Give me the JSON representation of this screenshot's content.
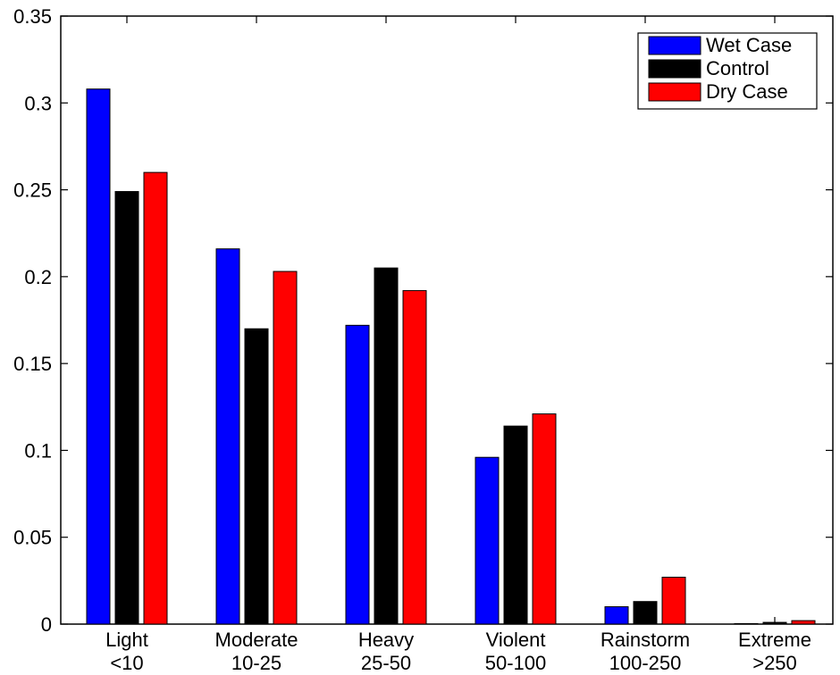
{
  "chart_data": {
    "type": "bar",
    "title": "",
    "xlabel": "",
    "ylabel": "",
    "ylim": [
      0,
      0.35
    ],
    "yticks": [
      0,
      0.05,
      0.1,
      0.15,
      0.2,
      0.25,
      0.3,
      0.35
    ],
    "ytick_labels": [
      "0",
      "0.05",
      "0.1",
      "0.15",
      "0.2",
      "0.25",
      "0.3",
      "0.35"
    ],
    "categories": [
      {
        "line1": "Light",
        "line2": "<10"
      },
      {
        "line1": "Moderate",
        "line2": "10-25"
      },
      {
        "line1": "Heavy",
        "line2": "25-50"
      },
      {
        "line1": "Violent",
        "line2": "50-100"
      },
      {
        "line1": "Rainstorm",
        "line2": "100-250"
      },
      {
        "line1": "Extreme",
        "line2": ">250"
      }
    ],
    "series": [
      {
        "name": "Wet Case",
        "color": "#0000ff",
        "values": [
          0.308,
          0.216,
          0.172,
          0.096,
          0.01,
          0.0003
        ]
      },
      {
        "name": "Control",
        "color": "#000000",
        "values": [
          0.249,
          0.17,
          0.205,
          0.114,
          0.013,
          0.001
        ]
      },
      {
        "name": "Dry Case",
        "color": "#ff0000",
        "values": [
          0.26,
          0.203,
          0.192,
          0.121,
          0.027,
          0.002
        ]
      }
    ],
    "legend_position": "top-right",
    "grid": false
  }
}
